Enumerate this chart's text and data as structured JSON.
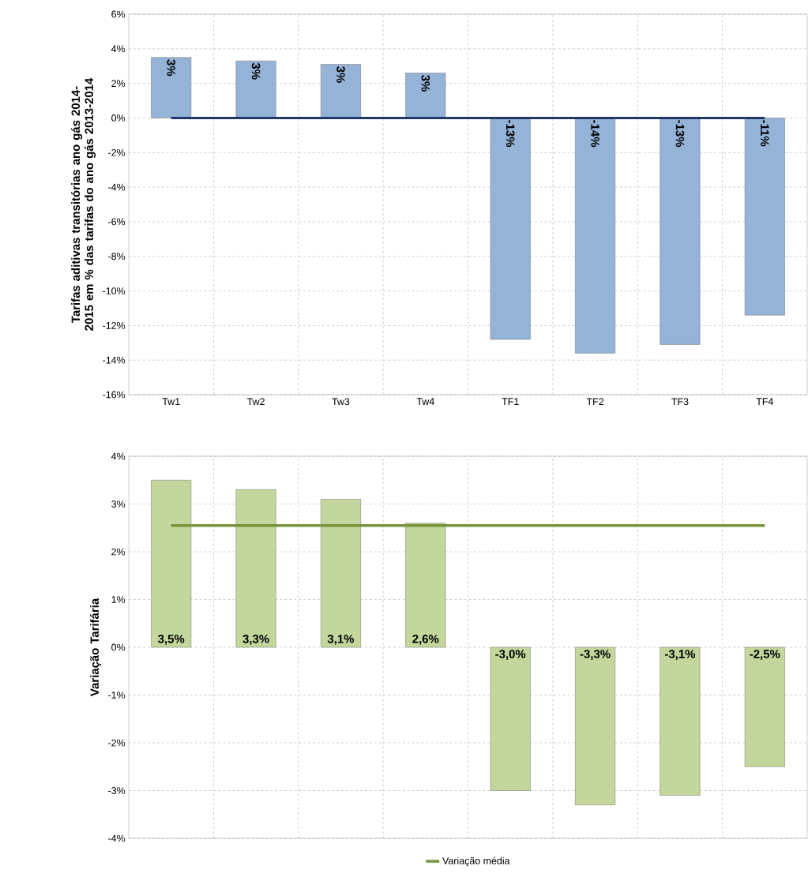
{
  "chart_data": [
    {
      "type": "bar",
      "ylabel": "Tarifas aditivas transitórias ano gás 2014-2015 em % das tarifas do ano gás 2013-2014",
      "categories": [
        "Tw1",
        "Tw2",
        "Tw3",
        "Tw4",
        "TF1",
        "TF2",
        "TF3",
        "TF4"
      ],
      "series": [
        {
          "color": "#95b3d7",
          "values": [
            3.5,
            3.3,
            3.1,
            2.6,
            -12.8,
            -13.6,
            -13.1,
            -11.4
          ],
          "value_labels": [
            "3%",
            "3%",
            "3%",
            "3%",
            "-13%",
            "-14%",
            "-13%",
            "-11%"
          ]
        }
      ],
      "ylim": [
        -16,
        6
      ],
      "yticks": [
        {
          "value": -16,
          "label": "-16%"
        },
        {
          "value": -14,
          "label": "-14%"
        },
        {
          "value": -12,
          "label": "-12%"
        },
        {
          "value": -10,
          "label": "-10%"
        },
        {
          "value": -8,
          "label": "-8%"
        },
        {
          "value": -6,
          "label": "-6%"
        },
        {
          "value": -4,
          "label": "-4%"
        },
        {
          "value": -2,
          "label": "-2%"
        },
        {
          "value": 0,
          "label": "0%"
        },
        {
          "value": 2,
          "label": "2%"
        },
        {
          "value": 4,
          "label": "4%"
        },
        {
          "value": 6,
          "label": "6%"
        }
      ],
      "ref_lines": [
        {
          "axis": "y",
          "value": 0,
          "color": "#1f3864"
        }
      ],
      "grid": true,
      "legend": false
    },
    {
      "type": "bar",
      "ylabel": "Variação Tarifária",
      "categories": [
        null,
        null,
        null,
        null,
        null,
        null,
        null,
        null
      ],
      "series": [
        {
          "color": "#c3d69b",
          "values": [
            3.5,
            3.3,
            3.1,
            2.6,
            -3.0,
            -3.3,
            -3.1,
            -2.5
          ],
          "value_labels": [
            "3,5%",
            "3,3%",
            "3,1%",
            "2,6%",
            "-3,0%",
            "-3,3%",
            "-3,1%",
            "-2,5%"
          ]
        },
        {
          "type": "line",
          "name": "Variação média",
          "color": "#77933c",
          "values": [
            2.55,
            2.55,
            2.55,
            2.55,
            2.55,
            2.55,
            2.55,
            2.55
          ]
        }
      ],
      "ylim": [
        -4,
        4
      ],
      "yticks": [
        {
          "value": -4,
          "label": "-4%"
        },
        {
          "value": -3,
          "label": "-3%"
        },
        {
          "value": -2,
          "label": "-2%"
        },
        {
          "value": -1,
          "label": "-1%"
        },
        {
          "value": 0,
          "label": "0%"
        },
        {
          "value": 1,
          "label": "1%"
        },
        {
          "value": 2,
          "label": "2%"
        },
        {
          "value": 3,
          "label": "3%"
        },
        {
          "value": 4,
          "label": "4%"
        }
      ],
      "tick_labels": "y",
      "grid": true,
      "legend": "bottom"
    }
  ]
}
